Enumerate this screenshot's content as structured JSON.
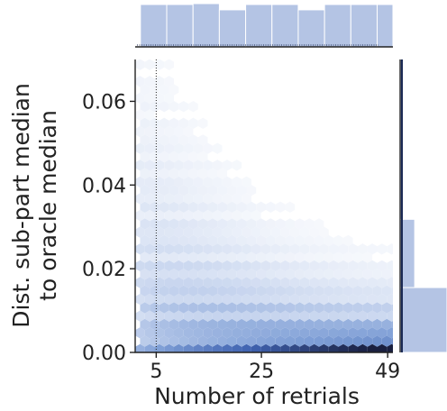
{
  "chart_data": {
    "type": "heatmap",
    "subtype": "hexbin-joint-plot",
    "xlabel": "Number of retrials",
    "ylabel_lines": [
      "Dist. sub-part median",
      "to oracle median"
    ],
    "xlim": [
      1,
      50
    ],
    "ylim": [
      0,
      0.07
    ],
    "x_ticks": [
      {
        "value": 5,
        "label": "5"
      },
      {
        "value": 25,
        "label": "25"
      },
      {
        "value": 49,
        "label": "49"
      }
    ],
    "y_ticks": [
      {
        "value": 0.0,
        "label": "0.00"
      },
      {
        "value": 0.02,
        "label": "0.02"
      },
      {
        "value": 0.04,
        "label": "0.04"
      },
      {
        "value": 0.06,
        "label": "0.06"
      }
    ],
    "reference_line_x": 5,
    "grid": false,
    "colormap": [
      "#ffffff",
      "#c6d4ee",
      "#7f9fd6",
      "#3f62b0",
      "#1a2040"
    ],
    "density_note": "density concentrated near y=0 and increasing with x; sparse tails up to about 0.07 at low x",
    "marginal_x": {
      "bins": [
        [
          2,
          7
        ],
        [
          7,
          12
        ],
        [
          12,
          17
        ],
        [
          17,
          22
        ],
        [
          22,
          27
        ],
        [
          27,
          32
        ],
        [
          32,
          37
        ],
        [
          37,
          42
        ],
        [
          42,
          47
        ],
        [
          47,
          50
        ]
      ],
      "counts": [
        95,
        95,
        97,
        83,
        95,
        95,
        83,
        95,
        95,
        95
      ]
    },
    "marginal_y": {
      "bins": [
        [
          0.0,
          0.0155
        ],
        [
          0.0155,
          0.0318
        ],
        [
          0.0318,
          0.07
        ]
      ],
      "counts": [
        100,
        31,
        6
      ]
    },
    "colors": {
      "hist_fill": "#b4c4e4",
      "hist_edge": "#ffffff",
      "dark": "#1b2a55"
    }
  }
}
